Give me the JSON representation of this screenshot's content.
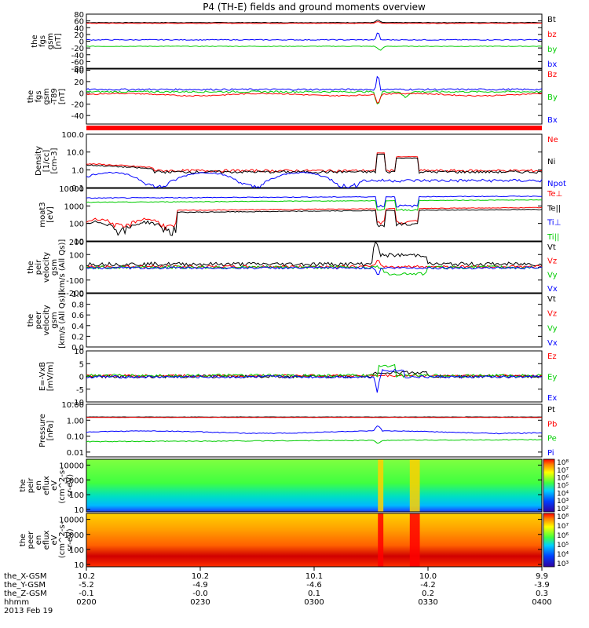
{
  "title": "P4 (TH-E) fields and ground moments overview",
  "colors": {
    "black": "#000000",
    "red": "#ff0000",
    "green": "#00cc00",
    "blue": "#0000ff",
    "bar": "#ff0000"
  },
  "panels": [
    {
      "id": "fgs-gsm",
      "ylabel": [
        "the",
        "fgs",
        "gsm",
        "[nT]"
      ],
      "ylim": [
        -80,
        80
      ],
      "ticks": [
        "80",
        "60",
        "40",
        "20",
        "0",
        "-20",
        "-40",
        "-60",
        "-80"
      ],
      "tick_values": [
        80,
        60,
        40,
        20,
        0,
        -20,
        -40,
        -60,
        -80
      ],
      "legend": [
        {
          "label": "Bt",
          "color": "black"
        },
        {
          "label": "bz",
          "color": "red"
        },
        {
          "label": "by",
          "color": "green"
        },
        {
          "label": "bx",
          "color": "blue"
        }
      ]
    },
    {
      "id": "fgs-gsm-dp",
      "ylabel": [
        "the",
        "fgs",
        "gsm",
        "-T89",
        "[nT]"
      ],
      "ylim": [
        -55,
        42
      ],
      "ticks": [
        "40",
        "20",
        "0",
        "-20",
        "-40"
      ],
      "tick_values": [
        40,
        20,
        0,
        -20,
        -40
      ],
      "legend": [
        {
          "label": "Bz",
          "color": "red"
        },
        {
          "label": "By",
          "color": "green"
        },
        {
          "label": "Bx",
          "color": "blue"
        }
      ]
    },
    {
      "id": "density",
      "ylabel": [
        "Density",
        "[1/cc]",
        "[cm-3]"
      ],
      "ylim": [
        0.1,
        100
      ],
      "log": true,
      "ticks": [
        "100.0",
        "10.0",
        "1.0",
        "0.1"
      ],
      "tick_values": [
        100,
        10,
        1,
        0.1
      ],
      "legend": [
        {
          "label": "Ne",
          "color": "red"
        },
        {
          "label": "Ni",
          "color": "black"
        },
        {
          "label": "Npot",
          "color": "blue"
        }
      ]
    },
    {
      "id": "temperature",
      "ylabel": [
        "moat3",
        "[eV]"
      ],
      "ylim": [
        10,
        10000
      ],
      "log": true,
      "ticks": [
        "10000",
        "1000",
        "100",
        "10"
      ],
      "tick_values": [
        10000,
        1000,
        100,
        10
      ],
      "legend": [
        {
          "label": "Te⊥",
          "color": "red"
        },
        {
          "label": "Te||",
          "color": "black"
        },
        {
          "label": "Ti⊥",
          "color": "blue"
        },
        {
          "label": "Ti||",
          "color": "green"
        }
      ]
    },
    {
      "id": "peir-velocity",
      "ylabel": [
        "the",
        "peir",
        "velocity",
        "gsm",
        "[km/s (All Qs)]"
      ],
      "ylim": [
        -200,
        200
      ],
      "ticks": [
        "200",
        "100",
        "0",
        "-100",
        "-200"
      ],
      "tick_values": [
        200,
        100,
        0,
        -100,
        -200
      ],
      "legend": [
        {
          "label": "Vt",
          "color": "black"
        },
        {
          "label": "Vz",
          "color": "red"
        },
        {
          "label": "Vy",
          "color": "green"
        },
        {
          "label": "Vx",
          "color": "blue"
        }
      ]
    },
    {
      "id": "peer-velocity",
      "ylabel": [
        "the",
        "peer",
        "velocity",
        "gsm",
        "[km/s (All Qs)]"
      ],
      "ylim": [
        0,
        1
      ],
      "ticks": [
        "1.0",
        "0.8",
        "0.6",
        "0.4",
        "0.2",
        "0.0"
      ],
      "tick_values": [
        1.0,
        0.8,
        0.6,
        0.4,
        0.2,
        0.0
      ],
      "legend": [
        {
          "label": "Vt",
          "color": "black"
        },
        {
          "label": "Vz",
          "color": "red"
        },
        {
          "label": "Vy",
          "color": "green"
        },
        {
          "label": "Vx",
          "color": "blue"
        }
      ]
    },
    {
      "id": "efield",
      "ylabel": [
        "E=-VxB",
        "[mV/m]"
      ],
      "ylim": [
        -10,
        10
      ],
      "ticks": [
        "10",
        "5",
        "0",
        "-5",
        "-10"
      ],
      "tick_values": [
        10,
        5,
        0,
        -5,
        -10
      ],
      "legend": [
        {
          "label": "Ez",
          "color": "red"
        },
        {
          "label": "Ey",
          "color": "green"
        },
        {
          "label": "Ex",
          "color": "blue"
        }
      ]
    },
    {
      "id": "pressure",
      "ylabel": [
        "Pressure",
        "[nPa]"
      ],
      "ylim": [
        0.005,
        10
      ],
      "log": true,
      "ticks": [
        "10.00",
        "1.00",
        "0.10",
        "0.01"
      ],
      "tick_values": [
        10,
        1,
        0.1,
        0.01
      ],
      "legend": [
        {
          "label": "Pt",
          "color": "black"
        },
        {
          "label": "Pb",
          "color": "red"
        },
        {
          "label": "Pe",
          "color": "green"
        },
        {
          "label": "Pi",
          "color": "blue"
        }
      ]
    },
    {
      "id": "peir-spec",
      "ylabel": [
        "the",
        "peir",
        "en",
        "eflux",
        "eV",
        "(cm^2-s-",
        "sr-eV)"
      ],
      "ticks": [
        "10000",
        "1000",
        "100",
        "10"
      ],
      "tick_values": [
        10000,
        1000,
        100,
        10
      ],
      "ylim": [
        7,
        25000
      ],
      "spectrogram": true,
      "colorbar": [
        "10⁸",
        "10⁷",
        "10⁶",
        "10⁵",
        "10⁴",
        "10³",
        "10²"
      ]
    },
    {
      "id": "peer-spec",
      "ylabel": [
        "the",
        "peer",
        "en",
        "eflux",
        "eV",
        "(cm^2-s-",
        "sr-eV)"
      ],
      "ticks": [
        "10000",
        "1000",
        "100",
        "10"
      ],
      "tick_values": [
        10000,
        1000,
        100,
        10
      ],
      "ylim": [
        7,
        25000
      ],
      "spectrogram": true,
      "colorbar": [
        "10⁸",
        "10⁷",
        "10⁶",
        "10⁵",
        "10⁴",
        "10³"
      ]
    }
  ],
  "xaxis": {
    "row_labels": [
      "the_X-GSM",
      "the_Y-GSM",
      "the_Z-GSM",
      "hhmm",
      "2013 Feb 19"
    ],
    "ticks": [
      {
        "x": "10.2",
        "y": "-5.2",
        "z": "-0.1",
        "t": "0200"
      },
      {
        "x": "10.2",
        "y": "-4.9",
        "z": "-0.0",
        "t": "0230"
      },
      {
        "x": "10.1",
        "y": "-4.6",
        "z": "0.1",
        "t": "0300"
      },
      {
        "x": "10.0",
        "y": "-4.2",
        "z": "0.2",
        "t": "0330"
      },
      {
        "x": "9.9",
        "y": "-3.9",
        "z": "0.3",
        "t": "0400"
      }
    ]
  },
  "chart_data": {
    "type": "line",
    "title": "P4 (TH-E) fields and ground moments overview",
    "x_unit": "hhmm",
    "x_range": [
      "0200",
      "0400"
    ],
    "series": [
      {
        "name": "Bt",
        "panel": "fgs-gsm",
        "x": [
          "0200",
          "0230",
          "0300",
          "0325",
          "0330",
          "0400"
        ],
        "values": [
          55,
          54,
          55,
          62,
          56,
          55
        ]
      },
      {
        "name": "bz",
        "panel": "fgs-gsm",
        "x": [
          "0200",
          "0230",
          "0300",
          "0325",
          "0330",
          "0400"
        ],
        "values": [
          53,
          52,
          53,
          58,
          55,
          54
        ]
      },
      {
        "name": "by",
        "panel": "fgs-gsm",
        "x": [
          "0200",
          "0230",
          "0300",
          "0325",
          "0330",
          "0400"
        ],
        "values": [
          -15,
          -16,
          -15,
          -25,
          -16,
          -16
        ]
      },
      {
        "name": "bx",
        "panel": "fgs-gsm",
        "x": [
          "0200",
          "0230",
          "0300",
          "0325",
          "0330",
          "0400"
        ],
        "values": [
          3,
          2,
          4,
          30,
          6,
          6
        ]
      },
      {
        "name": "Ne",
        "panel": "density",
        "x": [
          "0200",
          "0210",
          "0230",
          "0300",
          "0325",
          "0335",
          "0400"
        ],
        "values": [
          2.5,
          1.2,
          0.8,
          0.8,
          10,
          5,
          0.6
        ]
      },
      {
        "name": "Te⊥",
        "panel": "temperature",
        "x": [
          "0200",
          "0210",
          "0230",
          "0300",
          "0325",
          "0335",
          "0400"
        ],
        "values": [
          100,
          200,
          400,
          500,
          120,
          180,
          700
        ]
      },
      {
        "name": "Ti⊥",
        "panel": "temperature",
        "x": [
          "0200",
          "0230",
          "0300",
          "0325",
          "0335",
          "0400"
        ],
        "values": [
          2500,
          2800,
          3000,
          900,
          1200,
          3500
        ]
      },
      {
        "name": "Vt",
        "panel": "peir-velocity",
        "x": [
          "0200",
          "0230",
          "0300",
          "0325",
          "0335",
          "0400"
        ],
        "values": [
          20,
          25,
          30,
          150,
          100,
          30
        ]
      },
      {
        "name": "Pb",
        "panel": "pressure",
        "x": [
          "0200",
          "0230",
          "0300",
          "0330",
          "0400"
        ],
        "values": [
          1.5,
          1.5,
          1.5,
          1.5,
          1.5
        ]
      },
      {
        "name": "Pi",
        "panel": "pressure",
        "x": [
          "0200",
          "0230",
          "0300",
          "0330",
          "0400"
        ],
        "values": [
          0.2,
          0.15,
          0.18,
          0.2,
          0.25
        ]
      },
      {
        "name": "Pe",
        "panel": "pressure",
        "x": [
          "0200",
          "0230",
          "0300",
          "0330",
          "0400"
        ],
        "values": [
          0.04,
          0.05,
          0.05,
          0.05,
          0.07
        ]
      }
    ]
  }
}
